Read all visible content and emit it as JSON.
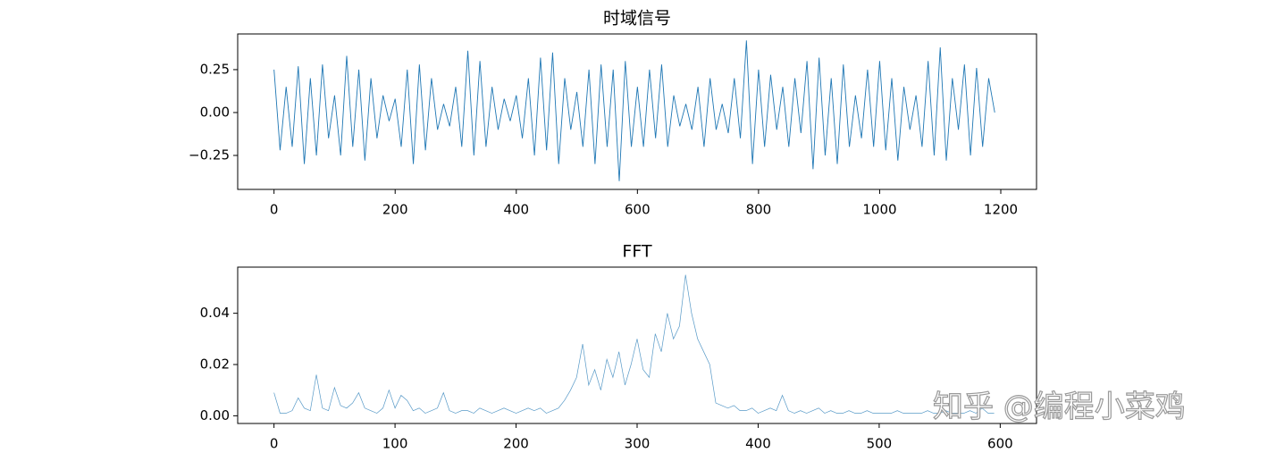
{
  "chart_data": [
    {
      "type": "line",
      "title": "时域信号",
      "color": "#1f77b4",
      "xlim": [
        -60,
        1259
      ],
      "ylim": [
        -0.448,
        0.458
      ],
      "xticks": [
        0,
        200,
        400,
        600,
        800,
        1000,
        1200
      ],
      "yticks": [
        {
          "value": -0.25,
          "label": "−0.25"
        },
        {
          "value": 0,
          "label": "0.00"
        },
        {
          "value": 0.25,
          "label": "0.25"
        }
      ],
      "x": [
        0,
        10,
        20,
        30,
        40,
        50,
        60,
        70,
        80,
        90,
        100,
        110,
        120,
        130,
        140,
        150,
        160,
        170,
        180,
        190,
        200,
        210,
        220,
        230,
        240,
        250,
        260,
        270,
        280,
        290,
        300,
        310,
        320,
        330,
        340,
        350,
        360,
        370,
        380,
        390,
        400,
        410,
        420,
        430,
        440,
        450,
        460,
        470,
        480,
        490,
        500,
        510,
        520,
        530,
        540,
        550,
        560,
        570,
        580,
        590,
        600,
        610,
        620,
        630,
        640,
        650,
        660,
        670,
        680,
        690,
        700,
        710,
        720,
        730,
        740,
        750,
        760,
        770,
        780,
        790,
        800,
        810,
        820,
        830,
        840,
        850,
        860,
        870,
        880,
        890,
        900,
        910,
        920,
        930,
        940,
        950,
        960,
        970,
        980,
        990,
        1000,
        1010,
        1020,
        1030,
        1040,
        1050,
        1060,
        1070,
        1080,
        1090,
        1100,
        1110,
        1120,
        1130,
        1140,
        1150,
        1160,
        1170,
        1180,
        1190
      ],
      "values": [
        0.25,
        -0.22,
        0.15,
        -0.2,
        0.27,
        -0.3,
        0.2,
        -0.25,
        0.28,
        -0.15,
        0.1,
        -0.25,
        0.33,
        -0.2,
        0.25,
        -0.28,
        0.2,
        -0.15,
        0.1,
        -0.05,
        0.08,
        -0.2,
        0.25,
        -0.3,
        0.28,
        -0.22,
        0.2,
        -0.1,
        0.05,
        -0.08,
        0.15,
        -0.2,
        0.36,
        -0.25,
        0.3,
        -0.2,
        0.15,
        -0.1,
        0.08,
        -0.05,
        0.1,
        -0.15,
        0.2,
        -0.25,
        0.32,
        -0.22,
        0.35,
        -0.3,
        0.2,
        -0.1,
        0.12,
        -0.2,
        0.25,
        -0.3,
        0.28,
        -0.2,
        0.25,
        -0.4,
        0.3,
        -0.2,
        0.15,
        -0.2,
        0.25,
        -0.15,
        0.28,
        -0.2,
        0.1,
        -0.08,
        0.05,
        -0.1,
        0.15,
        -0.2,
        0.2,
        -0.1,
        0.05,
        -0.12,
        0.2,
        -0.15,
        0.42,
        -0.3,
        0.25,
        -0.2,
        0.22,
        -0.1,
        0.15,
        -0.2,
        0.2,
        -0.12,
        0.3,
        -0.33,
        0.32,
        -0.25,
        0.2,
        -0.3,
        0.28,
        -0.2,
        0.1,
        -0.15,
        0.25,
        -0.2,
        0.3,
        -0.22,
        0.2,
        -0.28,
        0.15,
        -0.1,
        0.1,
        -0.2,
        0.3,
        -0.25,
        0.38,
        -0.28,
        0.2,
        -0.1,
        0.28,
        -0.25,
        0.26,
        -0.2,
        0.2,
        0.0
      ]
    },
    {
      "type": "line",
      "title": "FFT",
      "color": "#1f77b4",
      "xlim": [
        -30,
        630
      ],
      "ylim": [
        -0.003,
        0.058
      ],
      "xticks": [
        0,
        100,
        200,
        300,
        400,
        500,
        600
      ],
      "yticks": [
        {
          "value": 0,
          "label": "0.00"
        },
        {
          "value": 0.02,
          "label": "0.02"
        },
        {
          "value": 0.04,
          "label": "0.04"
        }
      ],
      "x": [
        0,
        5,
        10,
        15,
        20,
        25,
        30,
        35,
        40,
        45,
        50,
        55,
        60,
        65,
        70,
        75,
        80,
        85,
        90,
        95,
        100,
        105,
        110,
        115,
        120,
        125,
        130,
        135,
        140,
        145,
        150,
        155,
        160,
        165,
        170,
        175,
        180,
        185,
        190,
        195,
        200,
        205,
        210,
        215,
        220,
        225,
        230,
        235,
        240,
        245,
        250,
        255,
        260,
        265,
        270,
        275,
        280,
        285,
        290,
        295,
        300,
        305,
        310,
        315,
        320,
        325,
        330,
        335,
        340,
        345,
        350,
        355,
        360,
        365,
        370,
        375,
        380,
        385,
        390,
        395,
        400,
        405,
        410,
        415,
        420,
        425,
        430,
        435,
        440,
        445,
        450,
        455,
        460,
        465,
        470,
        475,
        480,
        485,
        490,
        495,
        500,
        505,
        510,
        515,
        520,
        525,
        530,
        535,
        540,
        545,
        550,
        555,
        560,
        565,
        570,
        575,
        580,
        585,
        590,
        595
      ],
      "values": [
        0.009,
        0.001,
        0.001,
        0.002,
        0.007,
        0.003,
        0.002,
        0.016,
        0.003,
        0.002,
        0.011,
        0.004,
        0.003,
        0.005,
        0.009,
        0.003,
        0.002,
        0.001,
        0.003,
        0.01,
        0.003,
        0.008,
        0.006,
        0.002,
        0.003,
        0.001,
        0.002,
        0.003,
        0.009,
        0.002,
        0.001,
        0.002,
        0.002,
        0.001,
        0.003,
        0.002,
        0.001,
        0.002,
        0.003,
        0.002,
        0.001,
        0.002,
        0.003,
        0.002,
        0.003,
        0.001,
        0.002,
        0.003,
        0.006,
        0.01,
        0.015,
        0.028,
        0.012,
        0.018,
        0.01,
        0.022,
        0.015,
        0.025,
        0.012,
        0.02,
        0.03,
        0.018,
        0.015,
        0.032,
        0.025,
        0.04,
        0.03,
        0.035,
        0.055,
        0.04,
        0.03,
        0.025,
        0.02,
        0.005,
        0.004,
        0.003,
        0.004,
        0.002,
        0.002,
        0.003,
        0.001,
        0.002,
        0.003,
        0.002,
        0.008,
        0.002,
        0.001,
        0.002,
        0.001,
        0.002,
        0.003,
        0.001,
        0.002,
        0.001,
        0.001,
        0.002,
        0.001,
        0.001,
        0.002,
        0.001,
        0.001,
        0.001,
        0.001,
        0.002,
        0.001,
        0.001,
        0.001,
        0.001,
        0.002,
        0.001,
        0.001,
        0.002,
        0.001,
        0.001,
        0.001,
        0.002,
        0.001,
        0.003,
        0.001,
        0.001
      ]
    }
  ],
  "watermark": "知乎 @编程小菜鸡"
}
